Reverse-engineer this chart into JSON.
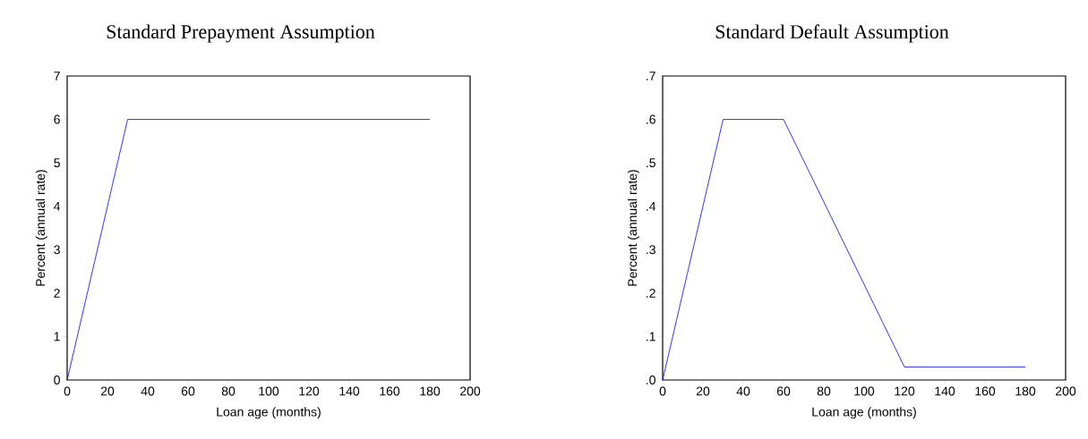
{
  "chart_data": [
    {
      "type": "line",
      "title": "Standard Prepayment Assumption",
      "xlabel": "Loan age (months)",
      "ylabel": "Percent (annual rate)",
      "x": [
        0,
        30,
        180
      ],
      "values": [
        0,
        6,
        6
      ],
      "color": "#0000ff",
      "xlim": [
        0,
        200
      ],
      "xticks": [
        0,
        20,
        40,
        60,
        80,
        100,
        120,
        140,
        160,
        180,
        200
      ],
      "ylim": [
        0,
        7
      ],
      "yticks": [
        0,
        1,
        2,
        3,
        4,
        5,
        6,
        7
      ],
      "grid": false
    },
    {
      "type": "line",
      "title": "Standard Default Assumption",
      "xlabel": "Loan age (months)",
      "ylabel": "Percent (annual rate)",
      "x": [
        0,
        30,
        60,
        120,
        180
      ],
      "values": [
        0,
        0.6,
        0.6,
        0.03,
        0.03
      ],
      "color": "#0000ff",
      "xlim": [
        0,
        200
      ],
      "xticks": [
        0,
        20,
        40,
        60,
        80,
        100,
        120,
        140,
        160,
        180,
        200
      ],
      "ylim": [
        0,
        0.7
      ],
      "yticks": [
        {
          "value": 0,
          "label": ".0"
        },
        {
          "value": 0.1,
          "label": ".1"
        },
        {
          "value": 0.2,
          "label": ".2"
        },
        {
          "value": 0.3,
          "label": ".3"
        },
        {
          "value": 0.4,
          "label": ".4"
        },
        {
          "value": 0.5,
          "label": ".5"
        },
        {
          "value": 0.6,
          "label": ".6"
        },
        {
          "value": 0.7,
          "label": ".7"
        }
      ],
      "grid": false
    }
  ]
}
